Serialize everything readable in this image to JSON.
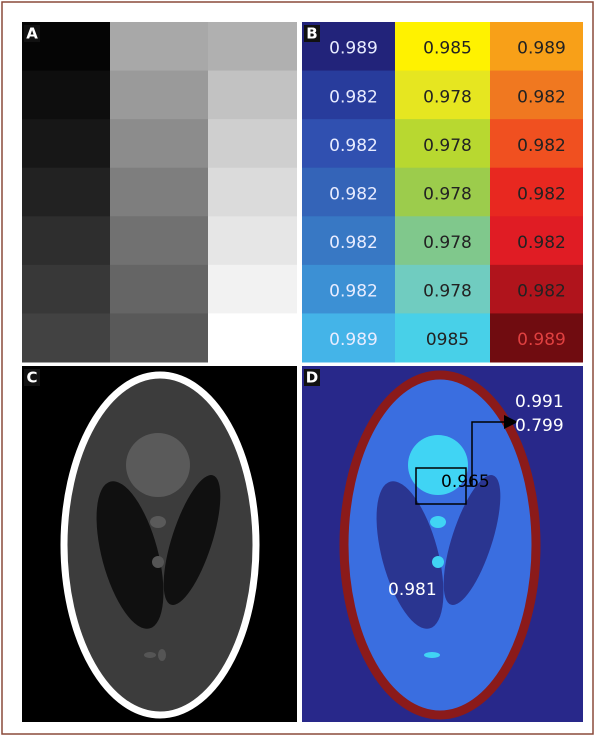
{
  "panels": [
    {
      "label": "A"
    },
    {
      "label": "B",
      "cells": [
        [
          "0.989",
          "0.985",
          "0.989"
        ],
        [
          "0.982",
          "0.978",
          "0.982"
        ],
        [
          "0.982",
          "0.978",
          "0.982"
        ],
        [
          "0.982",
          "0.978",
          "0.982"
        ],
        [
          "0.982",
          "0.978",
          "0.982"
        ],
        [
          "0.982",
          "0.978",
          "0.982"
        ],
        [
          "0.989",
          "0985",
          "0.989"
        ]
      ]
    },
    {
      "label": "C"
    },
    {
      "label": "D",
      "annotations": [
        "0.991",
        "0.799",
        "0.965",
        "0.981"
      ]
    }
  ]
}
